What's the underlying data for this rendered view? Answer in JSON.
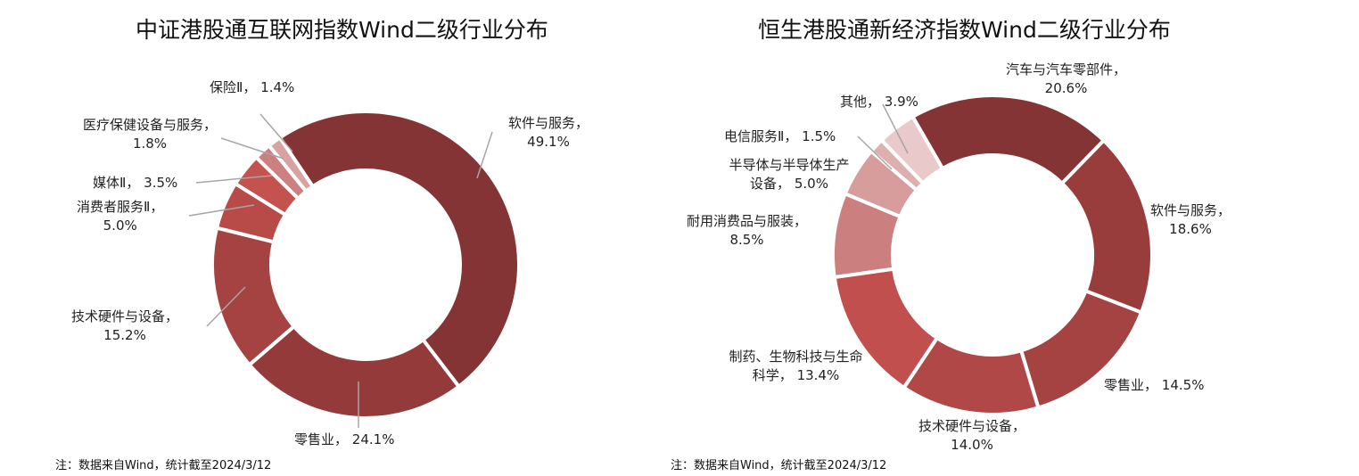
{
  "chart_data": [
    {
      "type": "pie",
      "donut": true,
      "title": "中证港股通互联网指数Wind二级行业分布",
      "note": "注：数据来自Wind，统计截至2024/3/12",
      "slices": [
        {
          "label": "软件与服务，",
          "pct": "49.1%",
          "value": 49.1,
          "color": "#843434"
        },
        {
          "label": "零售业，",
          "pct": "24.1%",
          "value": 24.1,
          "color": "#953a3a"
        },
        {
          "label": "技术硬件与设备，",
          "pct": "15.2%",
          "value": 15.2,
          "color": "#a54242"
        },
        {
          "label": "消费者服务Ⅱ，",
          "pct": "5.0%",
          "value": 5.0,
          "color": "#b84a48"
        },
        {
          "label": "媒体Ⅱ，",
          "pct": "3.5%",
          "value": 3.5,
          "color": "#c4524f"
        },
        {
          "label": "医疗保健设备与服务，",
          "pct": "1.8%",
          "value": 1.8,
          "color": "#cd8080"
        },
        {
          "label": "保险Ⅱ，",
          "pct": "1.4%",
          "value": 1.4,
          "color": "#d9a2a2"
        }
      ]
    },
    {
      "type": "pie",
      "donut": true,
      "title": "恒生港股通新经济指数Wind二级行业分布",
      "note": "注：数据来自Wind，统计截至2024/3/12",
      "slices": [
        {
          "label": "汽车与汽车零部件，",
          "pct": "20.6%",
          "value": 20.6,
          "color": "#843434"
        },
        {
          "label": "软件与服务，",
          "pct": "18.6%",
          "value": 18.6,
          "color": "#993c3c"
        },
        {
          "label": "零售业，",
          "pct": "14.5%",
          "value": 14.5,
          "color": "#a54242"
        },
        {
          "label": "技术硬件与设备，",
          "pct": "14.0%",
          "value": 14.0,
          "color": "#b04848"
        },
        {
          "label": "制药、生物科技与生命科学，",
          "pct": "13.4%",
          "value": 13.4,
          "color": "#c04f4e"
        },
        {
          "label": "耐用消费品与服装，",
          "pct": "8.5%",
          "value": 8.5,
          "color": "#cb7f7f"
        },
        {
          "label": "半导体与半导体生产设备，",
          "pct": "5.0%",
          "value": 5.0,
          "color": "#d79c9c"
        },
        {
          "label": "电信服务Ⅱ，",
          "pct": "1.5%",
          "value": 1.5,
          "color": "#ddb0b0"
        },
        {
          "label": "其他，",
          "pct": "3.9%",
          "value": 3.9,
          "color": "#e9c9c9"
        }
      ]
    }
  ]
}
